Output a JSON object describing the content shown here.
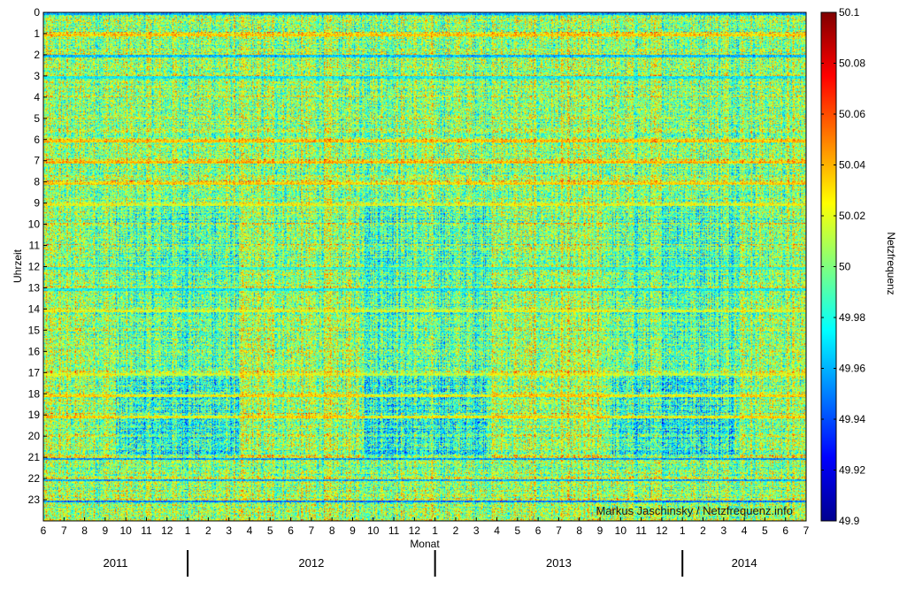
{
  "chart_data": {
    "type": "heatmap",
    "title": "",
    "xlabel": "Monat",
    "ylabel": "Uhrzeit",
    "colorbar_label": "Netzfrequenz",
    "credit": "Markus Jaschinsky / Netzfrequenz.info",
    "x_tick_labels": [
      "6",
      "7",
      "8",
      "9",
      "10",
      "11",
      "12",
      "1",
      "2",
      "3",
      "4",
      "5",
      "6",
      "7",
      "8",
      "9",
      "10",
      "11",
      "12",
      "1",
      "2",
      "3",
      "4",
      "5",
      "6",
      "7",
      "8",
      "9",
      "10",
      "11",
      "12",
      "1",
      "2",
      "3",
      "4",
      "5",
      "6",
      "7"
    ],
    "y_tick_labels": [
      "0",
      "1",
      "2",
      "3",
      "4",
      "5",
      "6",
      "7",
      "8",
      "9",
      "10",
      "11",
      "12",
      "13",
      "14",
      "15",
      "16",
      "17",
      "18",
      "19",
      "20",
      "21",
      "22",
      "23"
    ],
    "years": [
      "2011",
      "2012",
      "2013",
      "2014"
    ],
    "year_boundary_after_tick": [
      7,
      19,
      31
    ],
    "colorbar": {
      "min": 49.9,
      "max": 50.1,
      "tick_labels": [
        "50.1",
        "50.08",
        "50.06",
        "50.04",
        "50.02",
        "50",
        "49.98",
        "49.96",
        "49.94",
        "49.92",
        "49.9"
      ],
      "tick_values": [
        50.1,
        50.08,
        50.06,
        50.04,
        50.02,
        50.0,
        49.98,
        49.96,
        49.94,
        49.92,
        49.9
      ],
      "colormap": "jet"
    },
    "hour_row_pattern": [
      {
        "hour": 0,
        "value": 49.93
      },
      {
        "hour": 1,
        "value": 50.05
      },
      {
        "hour": 2,
        "value": 49.94
      },
      {
        "hour": 3,
        "value": 49.96
      },
      {
        "hour": 6,
        "value": 50.06
      },
      {
        "hour": 7,
        "value": 50.06
      },
      {
        "hour": 8,
        "value": 50.05
      },
      {
        "hour": 9,
        "value": 50.04
      },
      {
        "hour": 12,
        "value": 49.97
      },
      {
        "hour": 13,
        "value": 49.96
      },
      {
        "hour": 14,
        "value": 50.03
      },
      {
        "hour": 17,
        "value": 50.03
      },
      {
        "hour": 18,
        "value": 50.05
      },
      {
        "hour": 19,
        "value": 50.05
      },
      {
        "hour": 21,
        "value": 49.93
      },
      {
        "hour": 22,
        "value": 49.93
      },
      {
        "hour": 23,
        "value": 49.92
      }
    ],
    "grid": false
  }
}
